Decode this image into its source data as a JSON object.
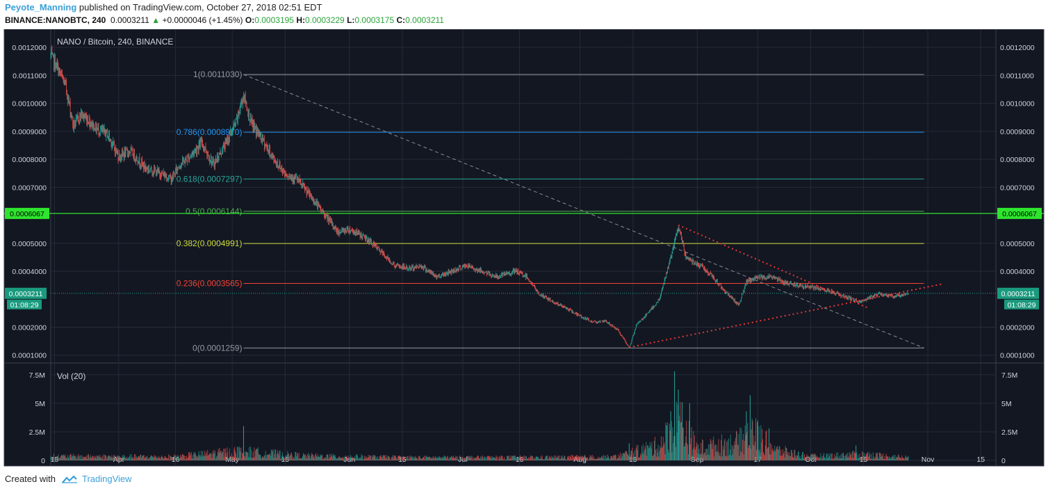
{
  "header": {
    "author": "Peyote_Manning",
    "published": "published on TradingView.com, October 27, 2018 02:51 EDT",
    "symbol": "BINANCE:NANOBTC, 240",
    "last": "0.0003211",
    "change": "+0.0000046 (+1.45%)",
    "o_label": "O:",
    "o": "0.0003195",
    "h_label": "H:",
    "h": "0.0003229",
    "l_label": "L:",
    "l": "0.0003175",
    "c_label": "C:",
    "c": "0.0003211"
  },
  "footer": {
    "created": "Created with",
    "brand": "TradingView"
  },
  "colors": {
    "bg": "#131722",
    "grid": "#262b3a",
    "up": "#26a69a",
    "down": "#ef5350",
    "fib_1": "#9598a1",
    "fib_786": "#2196f3",
    "fib_618": "#26a69a",
    "fib_5": "#4caf50",
    "fib_382": "#cddc39",
    "fib_236": "#f44336",
    "fib_0": "#9598a1",
    "trend": "#e53935",
    "price_label": "#1a9a7e",
    "level_label": "#2ee52e"
  },
  "chart_data": {
    "type": "candlestick",
    "title": "NANO / Bitcoin, 240, BINANCE",
    "symbol": "NANOBTC",
    "interval": "240",
    "x_tick_labels": [
      "15",
      "Apr",
      "16",
      "May",
      "15",
      "Jun",
      "15",
      "Jul",
      "16",
      "Aug",
      "15",
      "Sep",
      "17",
      "Oct",
      "15",
      "Nov",
      "15"
    ],
    "x_ticks": [
      "2018-03-15",
      "2018-04-01",
      "2018-04-16",
      "2018-05-01",
      "2018-05-15",
      "2018-06-01",
      "2018-06-15",
      "2018-07-01",
      "2018-07-16",
      "2018-08-01",
      "2018-08-15",
      "2018-09-01",
      "2018-09-17",
      "2018-10-01",
      "2018-10-15",
      "2018-11-01",
      "2018-11-15"
    ],
    "xlim": [
      "2018-03-14",
      "2018-11-19"
    ],
    "y_tick_labels": [
      "0.0012000",
      "0.0011000",
      "0.0010000",
      "0.0009000",
      "0.0008000",
      "0.0007000",
      "0.0005000",
      "0.0004000",
      "0.0002000",
      "0.0001000"
    ],
    "y_ticks": [
      0.0012,
      0.0011,
      0.001,
      0.0009,
      0.0008,
      0.0007,
      0.0005,
      0.0004,
      0.0002,
      0.0001
    ],
    "ylim": [
      7.2e-05,
      0.001265
    ],
    "price_path": [
      [
        "2018-03-14",
        0.00117
      ],
      [
        "2018-03-16",
        0.00112
      ],
      [
        "2018-03-18",
        0.00106
      ],
      [
        "2018-03-20",
        0.00092
      ],
      [
        "2018-03-22",
        0.00096
      ],
      [
        "2018-03-24",
        0.00094
      ],
      [
        "2018-03-26",
        0.00091
      ],
      [
        "2018-03-29",
        0.00089
      ],
      [
        "2018-04-01",
        0.00081
      ],
      [
        "2018-04-04",
        0.00083
      ],
      [
        "2018-04-08",
        0.00077
      ],
      [
        "2018-04-12",
        0.00075
      ],
      [
        "2018-04-15",
        0.00073
      ],
      [
        "2018-04-17",
        0.00078
      ],
      [
        "2018-04-19",
        0.0008
      ],
      [
        "2018-04-23",
        0.00086
      ],
      [
        "2018-04-26",
        0.00078
      ],
      [
        "2018-04-29",
        0.00085
      ],
      [
        "2018-05-02",
        0.00093
      ],
      [
        "2018-05-04",
        0.00103
      ],
      [
        "2018-05-06",
        0.00093
      ],
      [
        "2018-05-09",
        0.00087
      ],
      [
        "2018-05-12",
        0.0008
      ],
      [
        "2018-05-15",
        0.00075
      ],
      [
        "2018-05-18",
        0.00073
      ],
      [
        "2018-05-21",
        0.00068
      ],
      [
        "2018-05-25",
        0.00061
      ],
      [
        "2018-05-29",
        0.00054
      ],
      [
        "2018-06-01",
        0.00055
      ],
      [
        "2018-06-04",
        0.00053
      ],
      [
        "2018-06-07",
        0.0005
      ],
      [
        "2018-06-10",
        0.00046
      ],
      [
        "2018-06-13",
        0.00042
      ],
      [
        "2018-06-17",
        0.00041
      ],
      [
        "2018-06-20",
        0.00042
      ],
      [
        "2018-06-24",
        0.00038
      ],
      [
        "2018-06-28",
        0.0004
      ],
      [
        "2018-07-02",
        0.00042
      ],
      [
        "2018-07-06",
        0.0004
      ],
      [
        "2018-07-10",
        0.00038
      ],
      [
        "2018-07-15",
        0.0004
      ],
      [
        "2018-07-18",
        0.00038
      ],
      [
        "2018-07-21",
        0.00032
      ],
      [
        "2018-07-25",
        0.00029
      ],
      [
        "2018-07-28",
        0.00027
      ],
      [
        "2018-08-01",
        0.00024
      ],
      [
        "2018-08-04",
        0.00022
      ],
      [
        "2018-08-08",
        0.00022
      ],
      [
        "2018-08-11",
        0.00019
      ],
      [
        "2018-08-14",
        0.000126
      ],
      [
        "2018-08-16",
        0.00021
      ],
      [
        "2018-08-19",
        0.00025
      ],
      [
        "2018-08-22",
        0.0003
      ],
      [
        "2018-08-24",
        0.0004
      ],
      [
        "2018-08-26",
        0.0005
      ],
      [
        "2018-08-27",
        0.00056
      ],
      [
        "2018-08-29",
        0.00045
      ],
      [
        "2018-09-02",
        0.00042
      ],
      [
        "2018-09-05",
        0.00038
      ],
      [
        "2018-09-09",
        0.00032
      ],
      [
        "2018-09-12",
        0.00028
      ],
      [
        "2018-09-14",
        0.00036
      ],
      [
        "2018-09-17",
        0.00038
      ],
      [
        "2018-09-21",
        0.00038
      ],
      [
        "2018-09-24",
        0.00036
      ],
      [
        "2018-09-28",
        0.00035
      ],
      [
        "2018-10-02",
        0.00034
      ],
      [
        "2018-10-06",
        0.00033
      ],
      [
        "2018-10-10",
        0.00031
      ],
      [
        "2018-10-14",
        0.00029
      ],
      [
        "2018-10-16",
        0.0003
      ],
      [
        "2018-10-19",
        0.00032
      ],
      [
        "2018-10-23",
        0.00031
      ],
      [
        "2018-10-27",
        0.000321
      ]
    ],
    "last_price": {
      "value": 0.0003211,
      "label": "0.0003211",
      "countdown": "01:08:29"
    },
    "horizontal_level": {
      "value": 0.0006067,
      "label": "0.0006067"
    },
    "fibonacci": {
      "start": "2018-05-04",
      "end": "2018-10-31",
      "levels": [
        {
          "ratio": 1,
          "price": 0.001103,
          "label": "1(0.0011030)"
        },
        {
          "ratio": 0.786,
          "price": 0.000897,
          "label": "0.786(0.0008970)"
        },
        {
          "ratio": 0.618,
          "price": 0.0007297,
          "label": "0.618(0.0007297)"
        },
        {
          "ratio": 0.5,
          "price": 0.0006144,
          "label": "0.5(0.0006144)"
        },
        {
          "ratio": 0.382,
          "price": 0.0004991,
          "label": "0.382(0.0004991)"
        },
        {
          "ratio": 0.236,
          "price": 0.0003565,
          "label": "0.236(0.0003565)"
        },
        {
          "ratio": 0,
          "price": 0.0001259,
          "label": "0(0.0001259)"
        }
      ]
    },
    "trend_lines": [
      {
        "style": "dotted",
        "color": "red",
        "from": [
          "2018-08-27",
          0.000565
        ],
        "to": [
          "2018-10-16",
          0.00027
        ]
      },
      {
        "style": "dotted",
        "color": "red",
        "from": [
          "2018-08-14",
          0.000128
        ],
        "to": [
          "2018-11-05",
          0.000355
        ]
      },
      {
        "style": "dashed",
        "color": "gray",
        "from": [
          "2018-05-04",
          0.001103
        ],
        "to": [
          "2018-10-31",
          0.0001259
        ]
      }
    ],
    "volume": {
      "label": "Vol (20)",
      "y_tick_labels": [
        "7.5M",
        "5M",
        "2.5M",
        "0"
      ],
      "y_ticks": [
        7500000,
        5000000,
        2500000,
        0
      ],
      "ylim": [
        0,
        8100000
      ],
      "profile": [
        [
          "2018-03-14",
          400000
        ],
        [
          "2018-04-15",
          350000
        ],
        [
          "2018-05-03",
          900000
        ],
        [
          "2018-05-20",
          450000
        ],
        [
          "2018-06-15",
          300000
        ],
        [
          "2018-07-20",
          300000
        ],
        [
          "2018-08-10",
          350000
        ],
        [
          "2018-08-14",
          700000
        ],
        [
          "2018-08-22",
          1500000
        ],
        [
          "2018-08-27",
          4000000
        ],
        [
          "2018-09-01",
          1200000
        ],
        [
          "2018-09-12",
          1800000
        ],
        [
          "2018-09-15",
          3000000
        ],
        [
          "2018-09-22",
          1000000
        ],
        [
          "2018-10-01",
          400000
        ],
        [
          "2018-10-15",
          600000
        ],
        [
          "2018-10-27",
          300000
        ]
      ],
      "spikes": [
        [
          "2018-05-04",
          3000000
        ],
        [
          "2018-08-14",
          1500000
        ],
        [
          "2018-08-25",
          4300000
        ],
        [
          "2018-08-26",
          7800000
        ],
        [
          "2018-08-27",
          6200000
        ],
        [
          "2018-08-28",
          5100000
        ],
        [
          "2018-08-30",
          5000000
        ],
        [
          "2018-09-14",
          4300000
        ],
        [
          "2018-09-15",
          5700000
        ],
        [
          "2018-09-17",
          3500000
        ],
        [
          "2018-09-20",
          2800000
        ],
        [
          "2018-10-13",
          1300000
        ]
      ]
    }
  }
}
